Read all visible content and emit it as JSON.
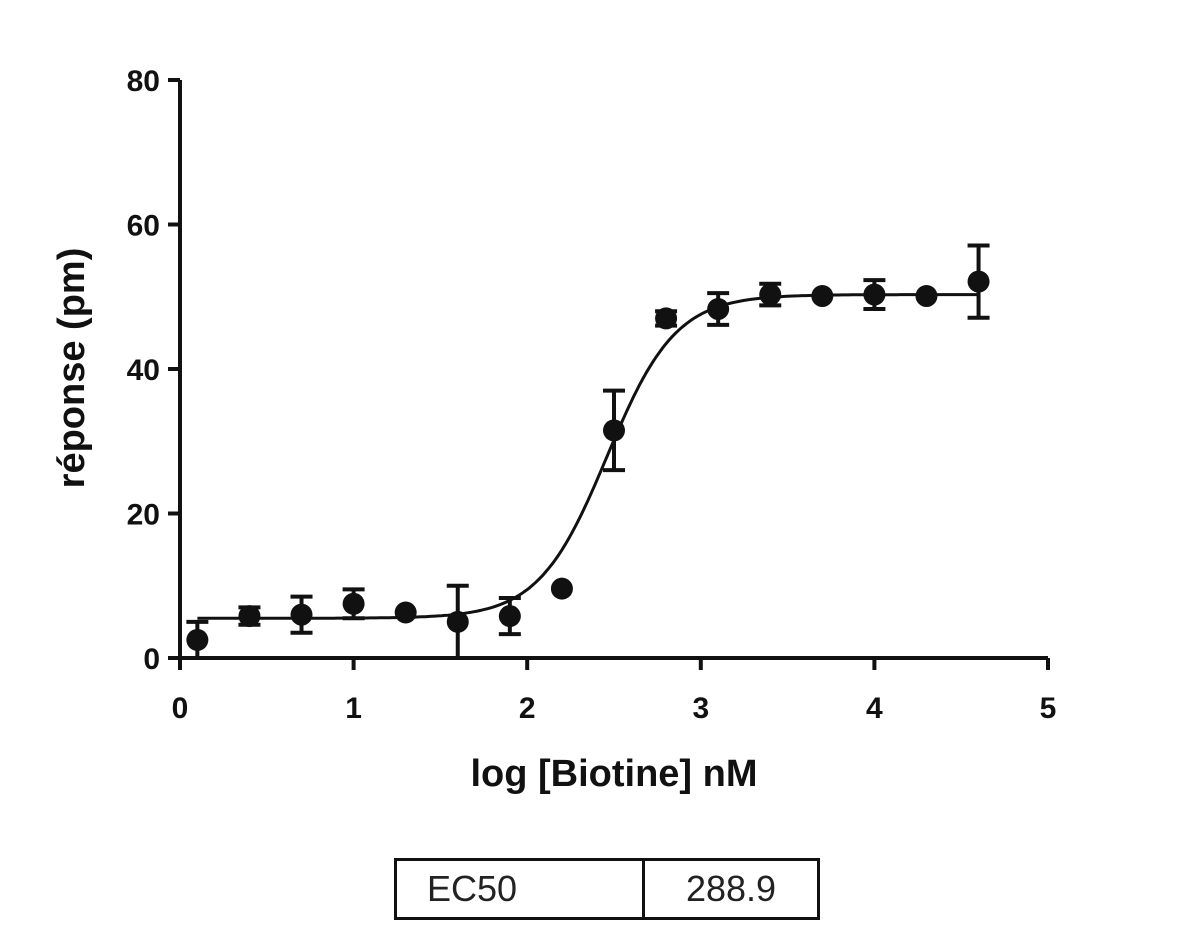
{
  "chart_data": {
    "type": "scatter",
    "title": "",
    "xlabel": "log [Biotine] nM",
    "ylabel": "réponse (pm)",
    "xlim": [
      0,
      5
    ],
    "ylim": [
      0,
      80
    ],
    "x_ticks": [
      0,
      1,
      2,
      3,
      4,
      5
    ],
    "y_ticks": [
      0,
      20,
      40,
      60,
      80
    ],
    "grid": false,
    "legend": "none",
    "color": "#111111",
    "series": [
      {
        "marker": "circle",
        "error_bars": true,
        "points": [
          {
            "x": 0.1,
            "y": 2.5,
            "err": 2.5
          },
          {
            "x": 0.4,
            "y": 5.8,
            "err": 1.2
          },
          {
            "x": 0.7,
            "y": 6.0,
            "err": 2.5
          },
          {
            "x": 1.0,
            "y": 7.5,
            "err": 2.0
          },
          {
            "x": 1.3,
            "y": 6.3,
            "err": 0
          },
          {
            "x": 1.6,
            "y": 5.0,
            "err": 5.0
          },
          {
            "x": 1.9,
            "y": 5.8,
            "err": 2.5
          },
          {
            "x": 2.2,
            "y": 9.6,
            "err": 0
          },
          {
            "x": 2.5,
            "y": 31.5,
            "err": 5.5
          },
          {
            "x": 2.8,
            "y": 47.0,
            "err": 1.0
          },
          {
            "x": 3.1,
            "y": 48.3,
            "err": 2.2
          },
          {
            "x": 3.4,
            "y": 50.3,
            "err": 1.5
          },
          {
            "x": 3.7,
            "y": 50.1,
            "err": 0
          },
          {
            "x": 4.0,
            "y": 50.3,
            "err": 2.0
          },
          {
            "x": 4.3,
            "y": 50.1,
            "err": 0
          },
          {
            "x": 4.6,
            "y": 52.1,
            "err": 5.0
          }
        ]
      }
    ],
    "fit": {
      "type": "sigmoidal dose-response",
      "bottom": 5.5,
      "top": 50.3,
      "log_ec50": 2.46,
      "hill_slope": 2.2,
      "x_range": [
        0.1,
        4.6
      ]
    }
  },
  "ec50_table": {
    "label": "EC50",
    "value": "288.9"
  }
}
